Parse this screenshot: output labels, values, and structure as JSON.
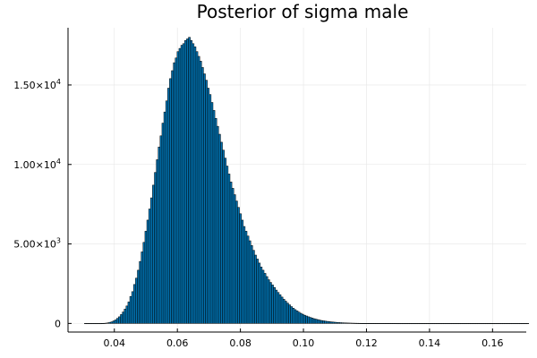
{
  "chart_data": {
    "type": "bar",
    "title": "Posterior of sigma male",
    "xlabel": "",
    "ylabel": "",
    "xlim": [
      0.0253,
      0.1707
    ],
    "ylim": [
      -542,
      18600
    ],
    "bin_width": 0.0006,
    "bar_color": "#0173b2",
    "edge_color": "#000000",
    "grid": true,
    "legend": false,
    "x_ticks": [
      {
        "value": 0.04,
        "label": "0.04"
      },
      {
        "value": 0.06,
        "label": "0.06"
      },
      {
        "value": 0.08,
        "label": "0.08"
      },
      {
        "value": 0.1,
        "label": "0.10"
      },
      {
        "value": 0.12,
        "label": "0.12"
      },
      {
        "value": 0.14,
        "label": "0.14"
      },
      {
        "value": 0.16,
        "label": "0.16"
      }
    ],
    "y_ticks": [
      {
        "value": 0,
        "label": "0",
        "mantissa": "0",
        "exp": ""
      },
      {
        "value": 5000,
        "label": "5.00×10^3",
        "mantissa": "5.00×10",
        "exp": "3"
      },
      {
        "value": 10000,
        "label": "1.00×10^4",
        "mantissa": "1.00×10",
        "exp": "4"
      },
      {
        "value": 15000,
        "label": "1.50×10^4",
        "mantissa": "1.50×10",
        "exp": "4"
      }
    ],
    "bins_start": 0.0305,
    "counts": [
      0,
      0,
      0,
      0,
      0,
      0,
      0,
      0,
      0,
      5,
      10,
      20,
      40,
      70,
      100,
      160,
      220,
      320,
      420,
      560,
      720,
      900,
      1100,
      1350,
      1700,
      2000,
      2450,
      2850,
      3350,
      3900,
      4500,
      5100,
      5800,
      6500,
      7200,
      7900,
      8700,
      9500,
      10300,
      11100,
      11800,
      12600,
      13300,
      14000,
      14800,
      15400,
      15900,
      16400,
      16700,
      17100,
      17300,
      17500,
      17600,
      17800,
      17900,
      18000,
      17800,
      17600,
      17400,
      17100,
      16800,
      16500,
      16100,
      15700,
      15300,
      14800,
      14400,
      13900,
      13400,
      12900,
      12400,
      11900,
      11400,
      10900,
      10400,
      9900,
      9400,
      8900,
      8500,
      8100,
      7700,
      7300,
      6900,
      6500,
      6100,
      5800,
      5500,
      5200,
      4900,
      4600,
      4300,
      4050,
      3800,
      3550,
      3350,
      3150,
      2950,
      2750,
      2580,
      2420,
      2260,
      2100,
      1950,
      1800,
      1660,
      1520,
      1400,
      1280,
      1170,
      1060,
      960,
      870,
      790,
      710,
      640,
      580,
      520,
      470,
      420,
      380,
      340,
      300,
      270,
      240,
      210,
      185,
      165,
      145,
      130,
      115,
      100,
      88,
      77,
      67,
      58,
      50,
      43,
      37,
      32,
      27,
      23,
      19,
      16,
      13,
      11,
      9,
      7,
      6,
      5,
      4,
      3,
      3,
      2,
      2,
      1,
      1,
      1,
      1,
      1,
      1,
      1,
      1,
      1,
      1,
      1,
      0,
      0,
      0,
      0,
      0,
      0,
      0,
      0,
      0,
      0,
      0,
      0,
      0,
      0,
      0,
      0,
      0,
      0,
      0,
      0,
      0,
      0,
      0,
      0,
      0,
      0,
      0,
      0,
      0,
      0,
      0,
      0,
      0,
      0,
      0,
      0,
      0,
      0,
      0,
      0,
      0,
      0,
      0,
      0,
      0,
      0,
      0,
      0,
      0,
      0,
      0,
      0,
      0,
      0,
      0,
      0,
      0,
      0,
      0,
      0,
      0,
      0,
      0,
      0,
      0,
      0,
      0,
      0,
      0,
      0
    ]
  }
}
